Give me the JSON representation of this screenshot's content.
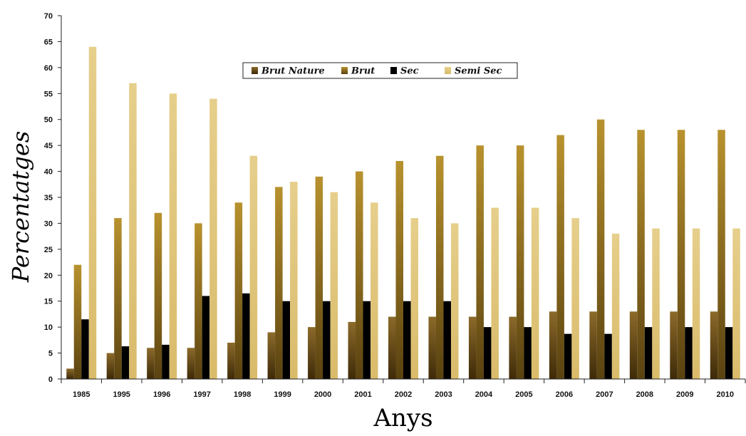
{
  "chart_data": {
    "type": "bar",
    "title": "",
    "xlabel": "Anys",
    "ylabel": "Percentatges",
    "ylim": [
      0,
      70
    ],
    "yticks": [
      "0",
      "5",
      "10",
      "15",
      "20",
      "25",
      "30",
      "35",
      "40",
      "45",
      "50",
      "55",
      "60",
      "65",
      "70"
    ],
    "grid": false,
    "legend_position": "top-center",
    "categories": [
      "1985",
      "1995",
      "1996",
      "1997",
      "1998",
      "1999",
      "2000",
      "2001",
      "2002",
      "2003",
      "2004",
      "2005",
      "2006",
      "2007",
      "2008",
      "2009",
      "2010"
    ],
    "series": [
      {
        "name": "Brut Nature",
        "color": "#7a5a1c",
        "gradient": [
          "#3d2a08",
          "#8c6a2a"
        ],
        "values": [
          2,
          5,
          6,
          6,
          7,
          9,
          10,
          11,
          12,
          12,
          12,
          12,
          13,
          13,
          13,
          13,
          13
        ]
      },
      {
        "name": "Brut",
        "color": "#a8842a",
        "gradient": [
          "#5a4210",
          "#b8922e"
        ],
        "values": [
          22,
          31,
          32,
          30,
          34,
          37,
          39,
          40,
          42,
          43,
          45,
          45,
          47,
          50,
          48,
          48,
          48
        ]
      },
      {
        "name": "Sec",
        "color": "#000000",
        "gradient": [
          "#000000",
          "#000000"
        ],
        "values": [
          11.5,
          6.3,
          6.6,
          16,
          16.5,
          15,
          15,
          15,
          15,
          15,
          10,
          10,
          8.7,
          8.7,
          10,
          10,
          10
        ]
      },
      {
        "name": "Semi Sec",
        "color": "#e2c780",
        "gradient": [
          "#d9bb6a",
          "#e6cf8c"
        ],
        "values": [
          64,
          57,
          55,
          54,
          43,
          38,
          36,
          34,
          31,
          30,
          33,
          33,
          31,
          28,
          29,
          29,
          29
        ]
      }
    ]
  }
}
